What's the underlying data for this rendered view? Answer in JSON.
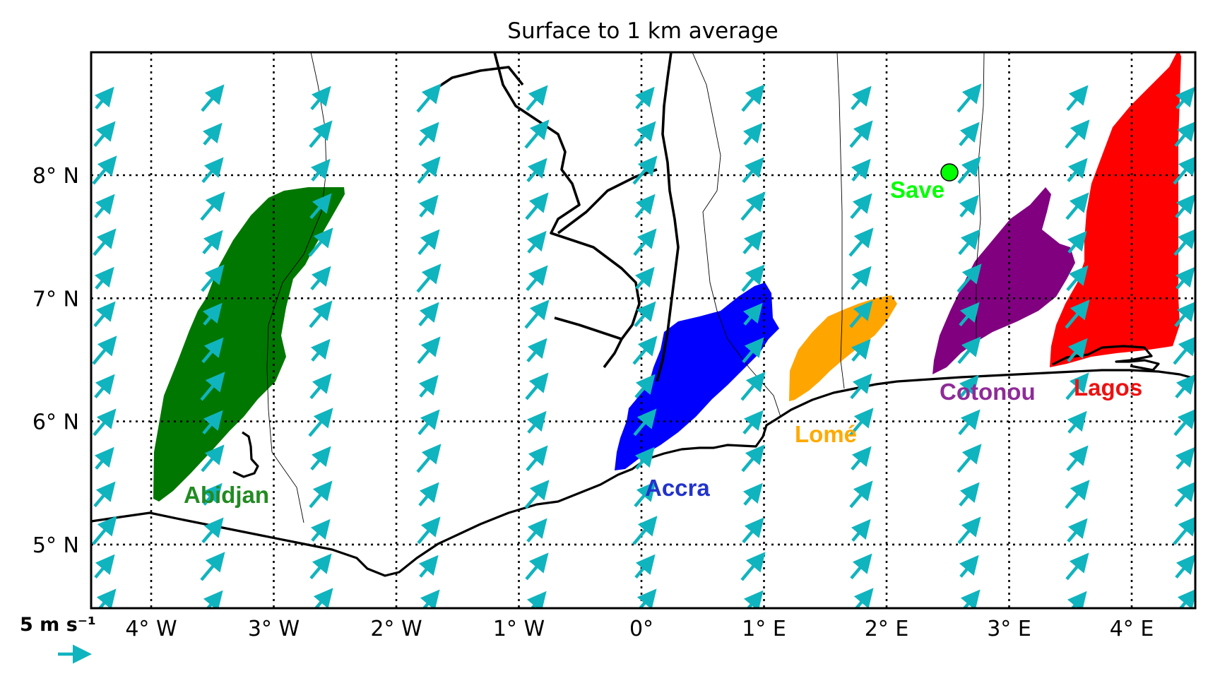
{
  "title": "Surface to 1 km average",
  "x_tick_labels": [
    {
      "lon": -4,
      "label": "4° W"
    },
    {
      "lon": -3,
      "label": "3° W"
    },
    {
      "lon": -2,
      "label": "2° W"
    },
    {
      "lon": -1,
      "label": "1° W"
    },
    {
      "lon": 0,
      "label": "0°"
    },
    {
      "lon": 1,
      "label": "1° E"
    },
    {
      "lon": 2,
      "label": "2° E"
    },
    {
      "lon": 3,
      "label": "3° E"
    },
    {
      "lon": 4,
      "label": "4° E"
    }
  ],
  "y_tick_labels": [
    {
      "lat": 8,
      "label": "8° N"
    },
    {
      "lat": 7,
      "label": "7° N"
    },
    {
      "lat": 6,
      "label": "6° N"
    },
    {
      "lat": 5,
      "label": "5° N"
    }
  ],
  "extent": {
    "lon_min": -4.5,
    "lon_max": 4.5,
    "lat_min": 4.5,
    "lat_max": 9.0
  },
  "gridlines": "dotted",
  "wind": {
    "color": "#10b4be",
    "direction_deg_from_north": 40,
    "reference": {
      "label": "5 m s⁻¹",
      "speed": 5
    }
  },
  "cities": [
    {
      "name": "Abidjan",
      "color": "#228b22",
      "plume_color": "#007700"
    },
    {
      "name": "Accra",
      "color": "#2233cc",
      "plume_color": "#0000ff"
    },
    {
      "name": "Lomé",
      "color": "#ffaa00",
      "plume_color": "#ffa500"
    },
    {
      "name": "Cotonou",
      "color": "#8e2b98",
      "plume_color": "#800080"
    },
    {
      "name": "Lagos",
      "color": "#ee1111",
      "plume_color": "#ff0000"
    }
  ],
  "site": {
    "name": "Save",
    "lon": 2.43,
    "lat": 8.03,
    "color": "#00ff00"
  }
}
